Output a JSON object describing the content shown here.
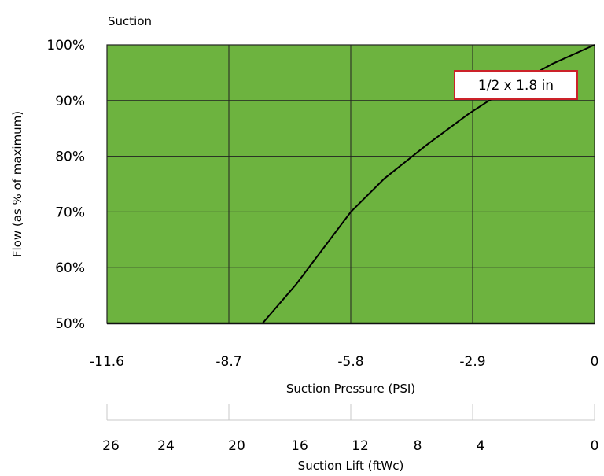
{
  "chart_data": {
    "type": "line",
    "title": "Suction",
    "plot_background": "#6db33f",
    "grid": true,
    "ylabel": "Flow (as % of maximum)",
    "xlabel": "Suction Pressure (PSI)",
    "xlim": [
      -11.6,
      0
    ],
    "ylim": [
      50,
      100
    ],
    "x_ticks": [
      -11.6,
      -8.7,
      -5.8,
      -2.9,
      0
    ],
    "x_tick_labels": [
      "-11.6",
      "-8.7",
      "-5.8",
      "-2.9",
      "0"
    ],
    "y_ticks": [
      50,
      60,
      70,
      80,
      90,
      100
    ],
    "y_tick_labels": [
      "50%",
      "60%",
      "70%",
      "80%",
      "90%",
      "100%"
    ],
    "series": [
      {
        "name": "1/2 x 1.8 in",
        "color": "#000000",
        "x": [
          -7.9,
          -7.1,
          -6.5,
          -5.8,
          -5.0,
          -4.0,
          -3.0,
          -2.0,
          -1.0,
          0
        ],
        "y": [
          50,
          57,
          63,
          70,
          76,
          82,
          87.6,
          92.5,
          96.6,
          100
        ]
      }
    ],
    "series_label_box": {
      "text": "1/2 x 1.8 in",
      "border_color": "#cc2229",
      "placement": "top-right"
    },
    "secondary_axis": {
      "label": "Suction Lift (ftWc)",
      "tick_labels": [
        "26",
        "24",
        "20",
        "16",
        "12",
        "8",
        "4",
        "0"
      ]
    }
  }
}
